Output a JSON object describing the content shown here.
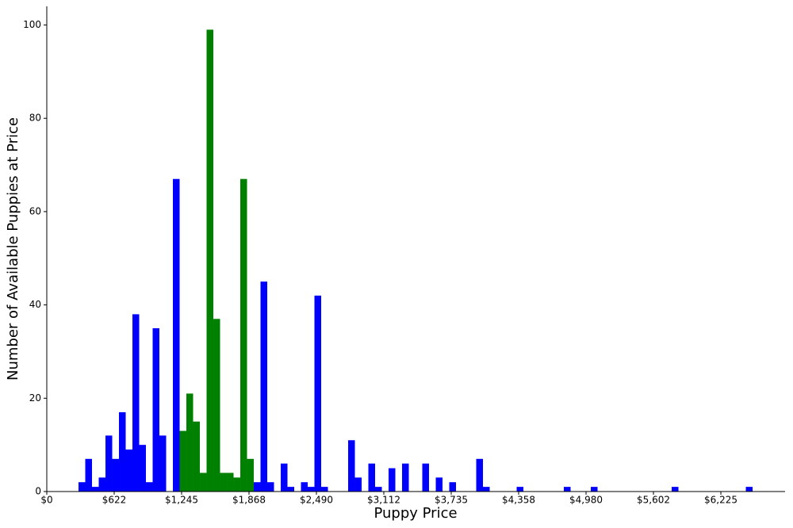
{
  "chart_data": {
    "type": "histogram",
    "xlabel": "Puppy Price",
    "ylabel": "Number of Available Puppies at Price",
    "bins": [
      293,
      355.25,
      417.5,
      479.75,
      542,
      604.25,
      666.5,
      728.75,
      791,
      853.25,
      915.5,
      977.75,
      1040,
      1102.25,
      1164.5,
      1226.75,
      1289,
      1351.25,
      1413.5,
      1475.75,
      1538,
      1600.25,
      1662.5,
      1724.75,
      1787,
      1849.25,
      1911.5,
      1973.75,
      2036,
      2098.25,
      2160.5,
      2222.75,
      2285,
      2347.25,
      2409.5,
      2471.75,
      2534,
      2596.25,
      2658.5,
      2720.75,
      2783,
      2845.25,
      2907.5,
      2969.75,
      3032,
      3094.25,
      3156.5,
      3218.75,
      3281,
      3343.25,
      3405.5,
      3467.75,
      3530,
      3592.25,
      3654.5,
      3716.75,
      3779,
      3841.25,
      3903.5,
      3965.75,
      4028,
      4090.25,
      4152.5,
      4214.75,
      4277,
      4339.25,
      4401.5,
      4463.75,
      4526,
      4588.25,
      4650.5,
      4712.75,
      4775,
      4837.25,
      4899.5,
      4961.75,
      5024,
      5086.25,
      5148.5,
      5210.75,
      5273,
      5335.25,
      5397.5,
      5459.75,
      5522,
      5584.25,
      5646.5,
      5708.75,
      5771,
      5833.25,
      5895.5,
      5957.75,
      6020,
      6082.25,
      6144.5,
      6206.75,
      6269,
      6331.25,
      6393.5,
      6455.75,
      6518
    ],
    "series": [
      {
        "color": "#0000ff",
        "values": [
          2,
          7,
          1,
          3,
          12,
          7,
          17,
          9,
          38,
          10,
          2,
          35,
          12,
          0,
          67,
          0,
          0,
          0,
          0,
          0,
          0,
          0,
          0,
          0,
          0,
          0,
          2,
          45,
          2,
          0,
          6,
          1,
          0,
          2,
          1,
          42,
          1,
          0,
          0,
          0,
          11,
          3,
          0,
          6,
          1,
          0,
          5,
          0,
          6,
          0,
          0,
          6,
          0,
          3,
          0,
          2,
          0,
          0,
          0,
          7,
          1,
          0,
          0,
          0,
          0,
          1,
          0,
          0,
          0,
          0,
          0,
          0,
          1,
          0,
          0,
          0,
          1,
          0,
          0,
          0,
          0,
          0,
          0,
          0,
          0,
          0,
          0,
          0,
          1,
          0,
          0,
          0,
          0,
          0,
          0,
          0,
          0,
          0,
          0,
          1
        ]
      },
      {
        "color": "#008000",
        "values": [
          0,
          0,
          0,
          0,
          0,
          0,
          0,
          0,
          0,
          0,
          0,
          0,
          0,
          0,
          0,
          13,
          21,
          15,
          4,
          99,
          37,
          4,
          4,
          3,
          67,
          7,
          0,
          0,
          0,
          0,
          0,
          0,
          0,
          0,
          0,
          0,
          0,
          0,
          0,
          0,
          0,
          0,
          0,
          0,
          0,
          0,
          0,
          0,
          0,
          0,
          0,
          0,
          0,
          0,
          0,
          0,
          0,
          0,
          0,
          0,
          0,
          0,
          0,
          0,
          0,
          0,
          0,
          0,
          0,
          0,
          0,
          0,
          0,
          0,
          0,
          0,
          0,
          0,
          0,
          0,
          0,
          0,
          0,
          0,
          0,
          0,
          0,
          0,
          0,
          0,
          0,
          0,
          0,
          0,
          0,
          0,
          0,
          0,
          0,
          0
        ]
      }
    ],
    "xlim": [
      0,
      6818
    ],
    "ylim": [
      0,
      104
    ],
    "xticks": [
      {
        "value": 0,
        "label": "$0"
      },
      {
        "value": 622.5,
        "label": "$622"
      },
      {
        "value": 1245,
        "label": "$1,245"
      },
      {
        "value": 1867.5,
        "label": "$1,868"
      },
      {
        "value": 2490,
        "label": "$2,490"
      },
      {
        "value": 3112.5,
        "label": "$3,112"
      },
      {
        "value": 3735,
        "label": "$3,735"
      },
      {
        "value": 4357.5,
        "label": "$4,358"
      },
      {
        "value": 4980,
        "label": "$4,980"
      },
      {
        "value": 5602.5,
        "label": "$5,602"
      },
      {
        "value": 6225,
        "label": "$6,225"
      }
    ],
    "yticks": [
      0,
      20,
      40,
      60,
      80,
      100
    ],
    "grid": false
  }
}
